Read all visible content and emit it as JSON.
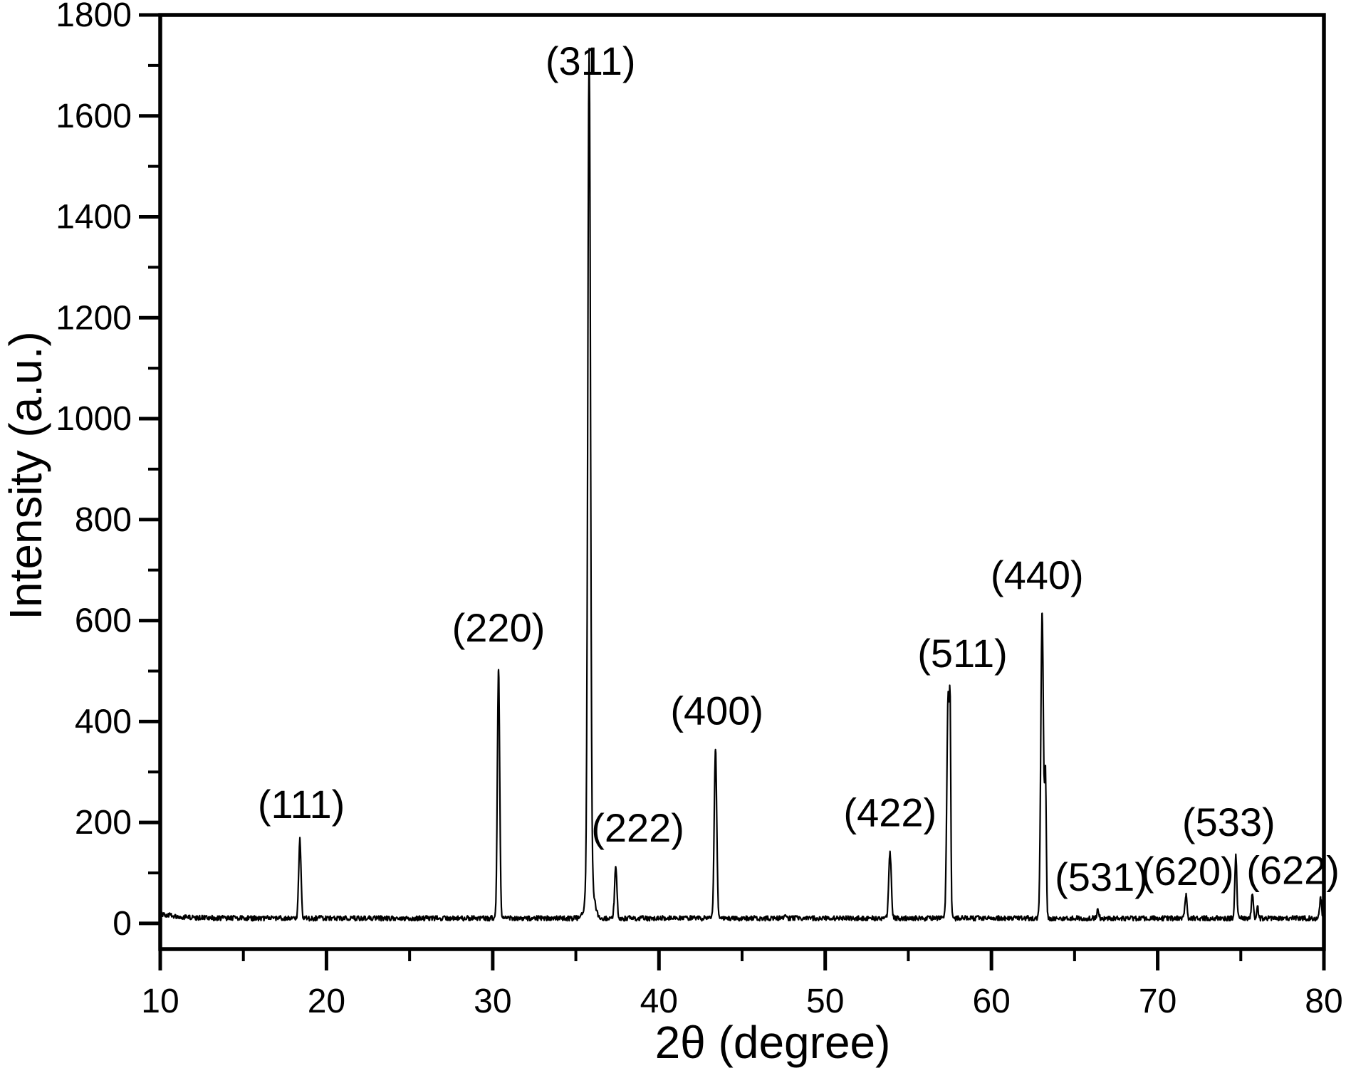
{
  "page": {
    "background_color": "#ffffff",
    "foreground_color": "#000000"
  },
  "chart_data": {
    "type": "line",
    "chart_kind": "xrd-powder-diffraction-pattern",
    "title": "",
    "xlabel": "2θ (degree)",
    "ylabel": "Intensity (a.u.)",
    "xlim": [
      10,
      80
    ],
    "ylim": [
      -51,
      1800
    ],
    "x_major_ticks": [
      10,
      20,
      30,
      40,
      50,
      60,
      70,
      80
    ],
    "x_minor_ticks": [
      15,
      25,
      35,
      45,
      55,
      65,
      75
    ],
    "y_major_ticks": [
      0,
      200,
      400,
      600,
      800,
      1000,
      1200,
      1400,
      1600,
      1800
    ],
    "y_minor_ticks": [
      100,
      300,
      500,
      700,
      900,
      1100,
      1300,
      1500,
      1700
    ],
    "grid": false,
    "legend": false,
    "line_color": "#000000",
    "background_color": "#ffffff",
    "baseline_intensity": 10,
    "baseline_start_boost": {
      "height": 9,
      "decay_deg": 1.2
    },
    "noise_amplitude": 5,
    "peaks": [
      {
        "hkl": "(111)",
        "two_theta": 18.4,
        "intensity": 165,
        "sigma": 0.07,
        "label_dx": 2,
        "label_dy": 10
      },
      {
        "hkl": "(220)",
        "two_theta": 30.35,
        "intensity": 505,
        "sigma": 0.07,
        "label_dx": 0,
        "label_dy": 3
      },
      {
        "hkl": "(311)",
        "two_theta": 35.8,
        "intensity": 1655,
        "sigma": 0.08,
        "label_dx": 2,
        "label_dy": 22
      },
      {
        "hkl": "(222)",
        "two_theta": 37.4,
        "intensity": 110,
        "sigma": 0.07,
        "label_dx": 31,
        "label_dy": 4
      },
      {
        "hkl": "(400)",
        "two_theta": 43.4,
        "intensity": 345,
        "sigma": 0.075,
        "label_dx": 2,
        "label_dy": 6
      },
      {
        "hkl": "(422)",
        "two_theta": 53.9,
        "intensity": 140,
        "sigma": 0.075,
        "label_dx": 0,
        "label_dy": 4
      },
      {
        "hkl": "(511)",
        "two_theta": 57.4,
        "intensity": 460,
        "sigma": 0.08,
        "label_dx": 20,
        "label_dy": 7
      },
      {
        "hkl": "(440)",
        "two_theta": 63.05,
        "intensity": 615,
        "sigma": 0.08,
        "label_dx": -7,
        "label_dy": 7
      },
      {
        "hkl": "(531)",
        "two_theta": 66.4,
        "intensity": 28,
        "sigma": 0.06,
        "label_dx": 5,
        "label_dy": 15
      },
      {
        "hkl": "(620)",
        "two_theta": 71.7,
        "intensity": 55,
        "sigma": 0.06,
        "label_dx": 2,
        "label_dy": 26
      },
      {
        "hkl": "(533)",
        "two_theta": 74.7,
        "intensity": 135,
        "sigma": 0.06,
        "label_dx": -10,
        "label_dy": 14
      },
      {
        "hkl": "(622)",
        "two_theta": 75.7,
        "intensity": 60,
        "sigma": 0.06,
        "label_dx": 57,
        "label_dy": 28
      }
    ],
    "unlabeled_features": [
      {
        "two_theta": 35.85,
        "intensity": 95,
        "sigma": 0.22
      },
      {
        "two_theta": 47.6,
        "intensity": 14,
        "sigma": 0.08
      },
      {
        "two_theta": 57.52,
        "intensity": 300,
        "sigma": 0.04
      },
      {
        "two_theta": 63.25,
        "intensity": 285,
        "sigma": 0.05
      },
      {
        "two_theta": 76.0,
        "intensity": 36,
        "sigma": 0.05
      },
      {
        "two_theta": 79.8,
        "intensity": 50,
        "sigma": 0.06
      }
    ]
  }
}
